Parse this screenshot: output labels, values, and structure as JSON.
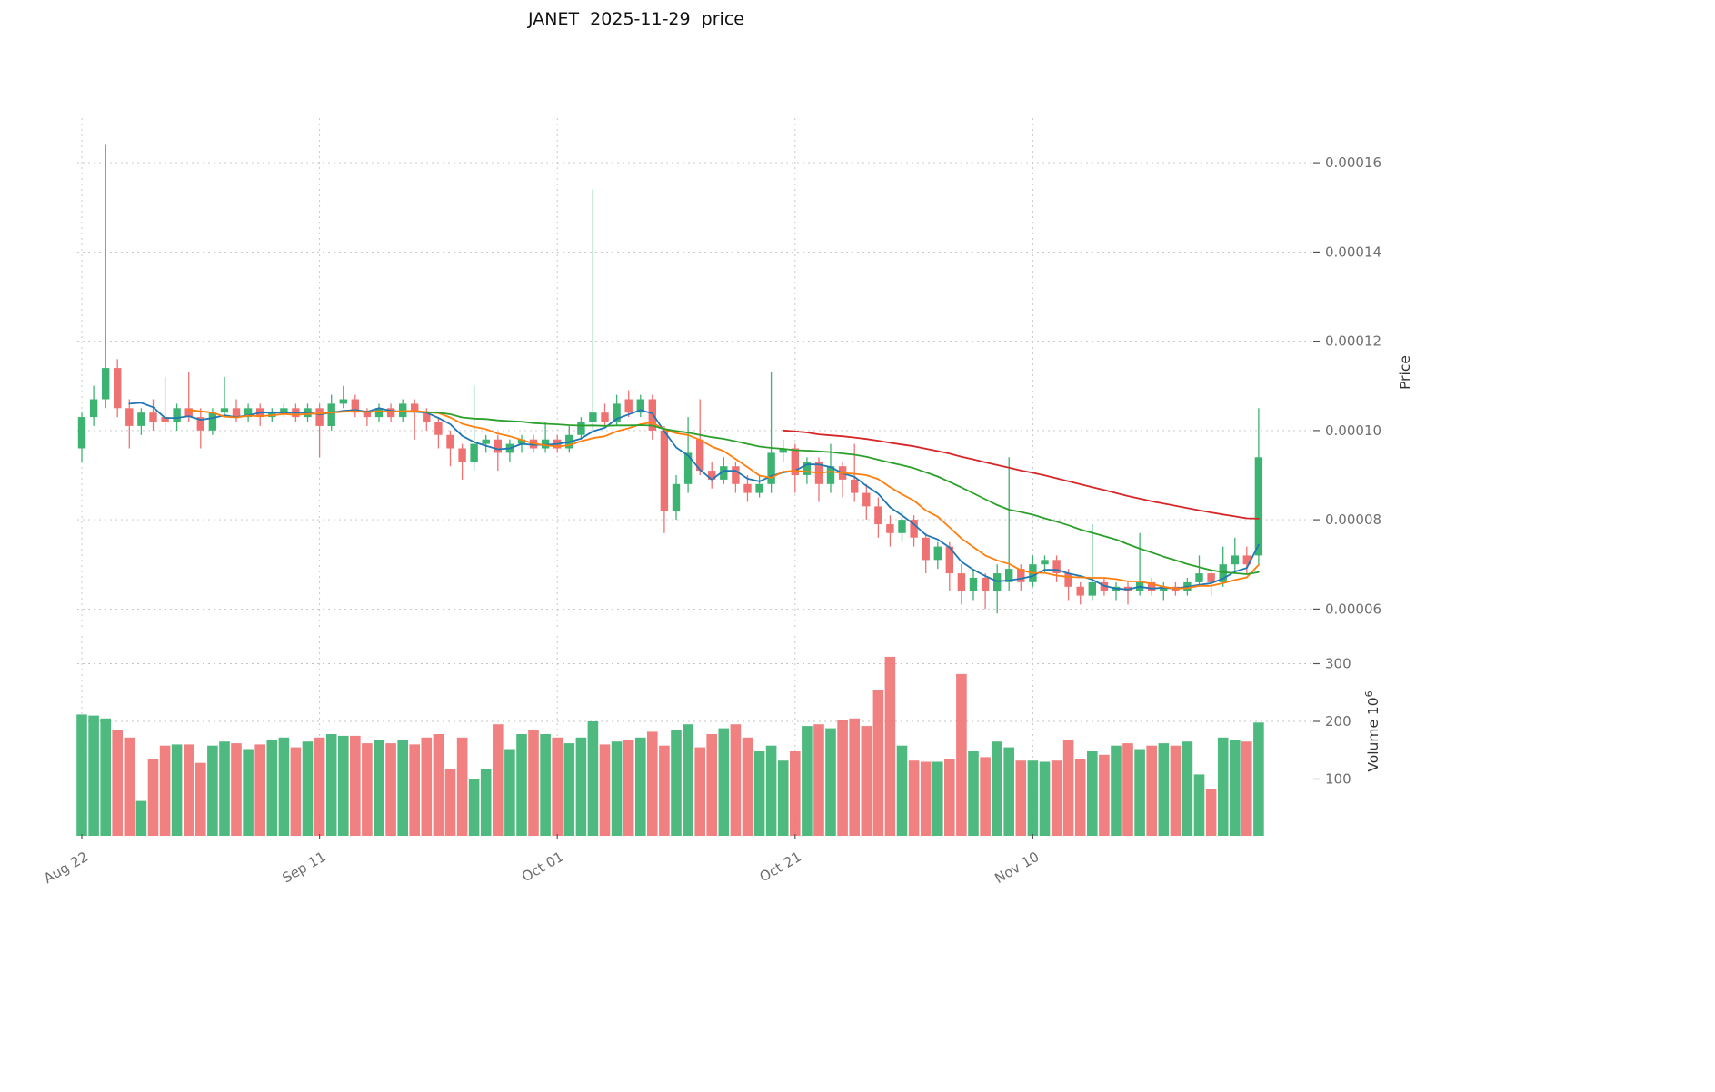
{
  "title": "JANET  2025-11-29  price",
  "chart_data": {
    "type": "candlestick",
    "title": "JANET  2025-11-29  price",
    "price_unit": 1e-06,
    "volume_unit": 1000000.0,
    "x_tick_labels": [
      "Aug 22",
      "Sep 11",
      "Oct 01",
      "Oct 21",
      "Nov 10"
    ],
    "x_tick_indices": [
      0,
      20,
      40,
      60,
      80
    ],
    "price_axis": {
      "label": "Price",
      "tick_values": [
        160,
        140,
        120,
        100,
        80,
        60
      ],
      "tick_labels": [
        "0.00016",
        "0.00014",
        "0.00012",
        "0.00010",
        "0.00008",
        "0.00006"
      ],
      "range_micro": [
        56,
        170
      ]
    },
    "volume_axis": {
      "label": "Volume",
      "unit_base": "10",
      "unit_exponent": "6",
      "tick_values": [
        100,
        200,
        300
      ],
      "tick_labels": [
        "100",
        "200",
        "300"
      ],
      "range": [
        0,
        350
      ]
    },
    "overlays": [
      {
        "name": "ma-5",
        "window": 5,
        "color": "#1f77b4"
      },
      {
        "name": "ma-10",
        "window": 10,
        "color": "#ff7f0e"
      },
      {
        "name": "ma-30",
        "window": 30,
        "color": "#2ca02c"
      },
      {
        "name": "ma-60",
        "window": 60,
        "color": "#d62728"
      }
    ],
    "colors": {
      "up": "#3cb371",
      "down": "#ef7272",
      "grid": "#c4c4c4",
      "tick_text": "#6e6e6e",
      "axis_label_text": "#333333"
    },
    "legend": "candles as [open, high, low, close, volume]; prices in units of 1e-6, volume in units of 1e6",
    "candles": [
      [
        96,
        104,
        93,
        103,
        212
      ],
      [
        103,
        110,
        101,
        107,
        210
      ],
      [
        107,
        164,
        105,
        114,
        205
      ],
      [
        114,
        116,
        103,
        105,
        185
      ],
      [
        105,
        107,
        96,
        101,
        172
      ],
      [
        101,
        105,
        99,
        104,
        62
      ],
      [
        104,
        107,
        100,
        102,
        135
      ],
      [
        103,
        112,
        100,
        102,
        158
      ],
      [
        102,
        106,
        100,
        105,
        160
      ],
      [
        105,
        113,
        102,
        103,
        160
      ],
      [
        103,
        105,
        96,
        100,
        128
      ],
      [
        100,
        105,
        99,
        104,
        158
      ],
      [
        104,
        112,
        103,
        105,
        165
      ],
      [
        105,
        107,
        102,
        103,
        162
      ],
      [
        103,
        106,
        102,
        105,
        152
      ],
      [
        105,
        106,
        101,
        103,
        160
      ],
      [
        103,
        105,
        102,
        104,
        168
      ],
      [
        104,
        106,
        103,
        105,
        172
      ],
      [
        105,
        106,
        102,
        103,
        155
      ],
      [
        103,
        106,
        102,
        105,
        165
      ],
      [
        105,
        106,
        94,
        101,
        172
      ],
      [
        101,
        108,
        100,
        106,
        178
      ],
      [
        106,
        110,
        105,
        107,
        175
      ],
      [
        107,
        108,
        103,
        104,
        175
      ],
      [
        104,
        105,
        101,
        103,
        162
      ],
      [
        103,
        106,
        102,
        105,
        168
      ],
      [
        105,
        106,
        102,
        103,
        162
      ],
      [
        103,
        107,
        102,
        106,
        168
      ],
      [
        106,
        107,
        98,
        104,
        160
      ],
      [
        104,
        105,
        100,
        102,
        172
      ],
      [
        102,
        103,
        96,
        99,
        178
      ],
      [
        99,
        100,
        92,
        96,
        118
      ],
      [
        96,
        97,
        89,
        93,
        172
      ],
      [
        93,
        110,
        91,
        97,
        100
      ],
      [
        97,
        99,
        95,
        98,
        118
      ],
      [
        98,
        99,
        91,
        95,
        195
      ],
      [
        95,
        98,
        93,
        97,
        152
      ],
      [
        97,
        99,
        95,
        98,
        178
      ],
      [
        98,
        99,
        95,
        96,
        185
      ],
      [
        96,
        102,
        95,
        98,
        178
      ],
      [
        98,
        99,
        95,
        96,
        172
      ],
      [
        96,
        101,
        95,
        99,
        162
      ],
      [
        99,
        103,
        98,
        102,
        172
      ],
      [
        102,
        154,
        100,
        104,
        200
      ],
      [
        104,
        106,
        101,
        102,
        160
      ],
      [
        102,
        108,
        101,
        106,
        165
      ],
      [
        107,
        109,
        103,
        104,
        168
      ],
      [
        104,
        108,
        103,
        107,
        172
      ],
      [
        107,
        108,
        98,
        100,
        182
      ],
      [
        100,
        101,
        77,
        82,
        158
      ],
      [
        82,
        90,
        80,
        88,
        185
      ],
      [
        88,
        103,
        86,
        95,
        195
      ],
      [
        98,
        107,
        90,
        91,
        155
      ],
      [
        91,
        93,
        87,
        89,
        178
      ],
      [
        89,
        94,
        88,
        92,
        188
      ],
      [
        92,
        93,
        86,
        88,
        195
      ],
      [
        88,
        90,
        84,
        86,
        172
      ],
      [
        86,
        90,
        85,
        88,
        148
      ],
      [
        88,
        113,
        86,
        95,
        158
      ],
      [
        95,
        98,
        93,
        96,
        132
      ],
      [
        96,
        97,
        86,
        90,
        148
      ],
      [
        90,
        94,
        88,
        93,
        192
      ],
      [
        93,
        94,
        84,
        88,
        195
      ],
      [
        88,
        97,
        86,
        92,
        188
      ],
      [
        92,
        93,
        85,
        89,
        202
      ],
      [
        89,
        97,
        84,
        86,
        205
      ],
      [
        86,
        88,
        80,
        83,
        192
      ],
      [
        83,
        85,
        76,
        79,
        255
      ],
      [
        79,
        81,
        74,
        77,
        312
      ],
      [
        77,
        82,
        75,
        80,
        158
      ],
      [
        80,
        81,
        74,
        76,
        132
      ],
      [
        76,
        77,
        68,
        71,
        130
      ],
      [
        71,
        75,
        69,
        74,
        130
      ],
      [
        74,
        75,
        64,
        68,
        135
      ],
      [
        68,
        70,
        61,
        64,
        282
      ],
      [
        64,
        69,
        62,
        67,
        148
      ],
      [
        67,
        68,
        60,
        64,
        138
      ],
      [
        64,
        70,
        59,
        68,
        165
      ],
      [
        66,
        94,
        64,
        69,
        155
      ],
      [
        69,
        70,
        64,
        66,
        132
      ],
      [
        66,
        72,
        65,
        70,
        132
      ],
      [
        70,
        72,
        68,
        71,
        130
      ],
      [
        71,
        72,
        66,
        68,
        132
      ],
      [
        68,
        69,
        62,
        65,
        168
      ],
      [
        65,
        66,
        61,
        63,
        135
      ],
      [
        63,
        79,
        62,
        66,
        148
      ],
      [
        66,
        67,
        63,
        64,
        142
      ],
      [
        64,
        66,
        62,
        65,
        158
      ],
      [
        65,
        66,
        61,
        64,
        162
      ],
      [
        64,
        77,
        63,
        66,
        152
      ],
      [
        66,
        67,
        63,
        64,
        158
      ],
      [
        64,
        66,
        62,
        65,
        162
      ],
      [
        65,
        66,
        63,
        64,
        158
      ],
      [
        64,
        67,
        63,
        66,
        165
      ],
      [
        66,
        72,
        65,
        68,
        108
      ],
      [
        68,
        69,
        63,
        66,
        82
      ],
      [
        66,
        74,
        65,
        70,
        172
      ],
      [
        70,
        76,
        68,
        72,
        168
      ],
      [
        72,
        74,
        68,
        70,
        165
      ],
      [
        72,
        105,
        70,
        94,
        198
      ]
    ]
  }
}
